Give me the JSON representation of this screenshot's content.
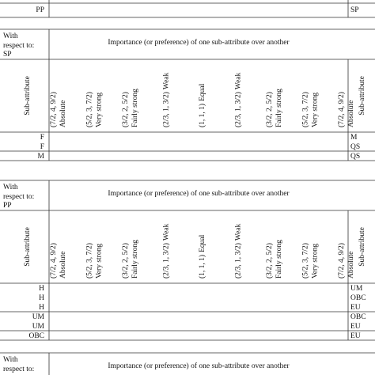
{
  "top_partial": {
    "left": "PP",
    "right": "SP"
  },
  "tables": [
    {
      "respect_label": [
        "With",
        "respect to:"
      ],
      "respect_value": "SP",
      "header": "Importance (or preference) of one sub-attribute over another",
      "sub_attribute_left": "Sub-attribute",
      "sub_attribute_right": "Sub-attribute",
      "scale": [
        {
          "tfn": "(7/2, 4, 9/2)",
          "label": "Absolute"
        },
        {
          "tfn": "(5/2, 3, 7/2)",
          "label": "Very strong"
        },
        {
          "tfn": "(3/2, 2, 5/2)",
          "label": "Fairly strong"
        },
        {
          "tfn": "(2/3, 1, 3/2)",
          "label": "Weak"
        },
        {
          "tfn": "(1, 1, 1)",
          "label": "Equal"
        },
        {
          "tfn": "(2/3, 1, 3/2)",
          "label": "Weak"
        },
        {
          "tfn": "(3/2, 2, 5/2)",
          "label": "Fairly strong"
        },
        {
          "tfn": "(5/2, 3, 7/2)",
          "label": "Very strong"
        },
        {
          "tfn": "(7/2, 4, 9/2)",
          "label": "Absolute"
        }
      ],
      "row_groups": [
        [
          {
            "left": "F",
            "right": "M"
          },
          {
            "left": "F",
            "right": "QS"
          }
        ],
        [
          {
            "left": "M",
            "right": "QS"
          }
        ]
      ]
    },
    {
      "respect_label": [
        "With",
        "respect to:"
      ],
      "respect_value": "PP",
      "header": "Importance (or preference) of one sub-attribute over another",
      "sub_attribute_left": "Sub-attribute",
      "sub_attribute_right": "Sub-attribute",
      "scale": [
        {
          "tfn": "(7/2, 4, 9/2)",
          "label": "Absolute"
        },
        {
          "tfn": "(5/2, 3, 7/2)",
          "label": "Very strong"
        },
        {
          "tfn": "(3/2, 2, 5/2)",
          "label": "Fairly strong"
        },
        {
          "tfn": "(2/3, 1, 3/2)",
          "label": "Weak"
        },
        {
          "tfn": "(1, 1, 1)",
          "label": "Equal"
        },
        {
          "tfn": "(2/3, 1, 3/2)",
          "label": "Weak"
        },
        {
          "tfn": "(3/2, 2, 5/2)",
          "label": "Fairly strong"
        },
        {
          "tfn": "(5/2, 3, 7/2)",
          "label": "Very strong"
        },
        {
          "tfn": "(7/2, 4, 9/2)",
          "label": "Absolute"
        }
      ],
      "row_groups": [
        [
          {
            "left": "H",
            "right": "UM"
          },
          {
            "left": "H",
            "right": "OBC"
          },
          {
            "left": "H",
            "right": "EU"
          }
        ],
        [
          {
            "left": "UM",
            "right": "OBC"
          },
          {
            "left": "UM",
            "right": "EU"
          }
        ],
        [
          {
            "left": "OBC",
            "right": "EU"
          }
        ]
      ]
    },
    {
      "respect_label": [
        "With",
        "respect to:"
      ],
      "header": "Importance (or preference) of one sub-attribute over another"
    }
  ]
}
